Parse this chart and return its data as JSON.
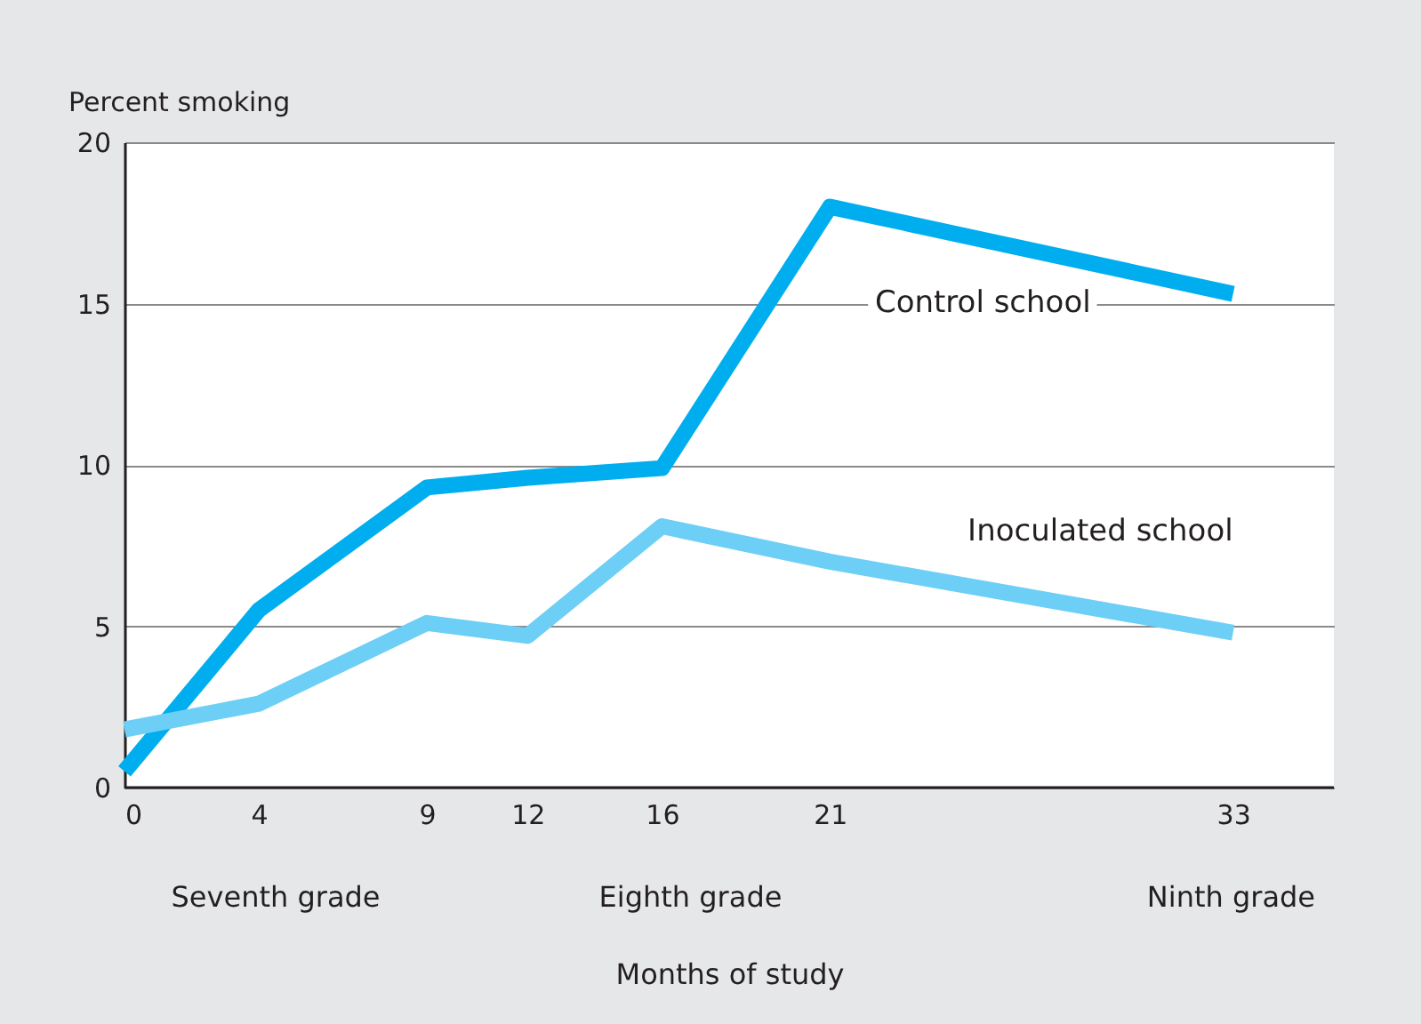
{
  "chart_data": {
    "type": "line",
    "ylabel": "Percent smoking",
    "xlabel": "Months of study",
    "x": [
      0,
      4,
      9,
      12,
      16,
      21,
      33
    ],
    "series": [
      {
        "name": "Control school",
        "color": "#00aeef",
        "values": [
          0.5,
          5.5,
          9.3,
          9.6,
          9.9,
          18.0,
          15.3
        ]
      },
      {
        "name": "Inoculated school",
        "color": "#6dcff6",
        "values": [
          1.8,
          2.6,
          5.1,
          4.7,
          8.1,
          7.0,
          4.8
        ]
      }
    ],
    "xlim": [
      0,
      36
    ],
    "xticks": [
      0,
      4,
      9,
      12,
      16,
      21,
      33
    ],
    "ylim": [
      0,
      20
    ],
    "yticks": [
      0,
      5,
      10,
      15,
      20
    ],
    "grid": "y",
    "marker": "none",
    "line_style": "solid",
    "annotations": [
      "Seventh grade",
      "Eighth grade",
      "Ninth grade"
    ]
  }
}
